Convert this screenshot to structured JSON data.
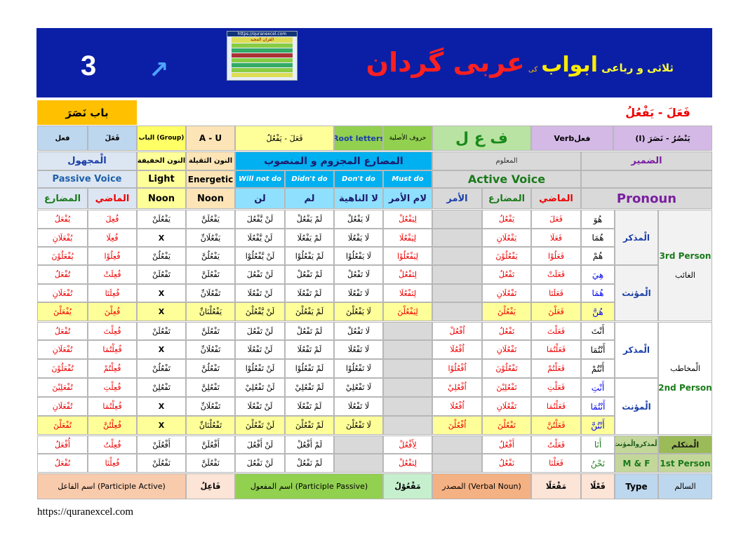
{
  "banner": {
    "page_number": "3",
    "arrow": "↗",
    "thumbnail_url": "https://quranexcel.com",
    "thumbnail_title": "القرآن المجيد",
    "title_part1": "ثلاثی و رباعی",
    "title_part2": "ابواب",
    "title_part3": "کی",
    "title_part4": "عربی گردان"
  },
  "header": {
    "bab": "باب نَصَرَ",
    "pattern": "فَعَلَ - يَفْعُلُ"
  },
  "info": {
    "type": "فعل",
    "kind": "فَعَلَ",
    "group": "(Group) الباب",
    "au": "A - U",
    "pattern": "فَعَلَ - يَفْعُلُ",
    "root_en": "Root letters",
    "root_ar": "حروف الأصلية",
    "root_letters": "ف ع ل",
    "verb": "Verbفعل",
    "verb_form": "يَنْصُرُ - نَصَرَ (I)"
  },
  "headers": {
    "majhool": "الْمجهول",
    "passive": "Passive Voice",
    "mudari_p": "المضارع",
    "madi_p": "الماضي",
    "noon_khafifa": "النون الخفيفة",
    "light": "Light",
    "noon1": "Noon",
    "noon_thaqila": "النون الثقيلة",
    "energetic": "Energetic",
    "noon2": "Noon",
    "mudari_title": "المضارع المجزوم و المنصوب",
    "will_not": "Will not do",
    "didnt": "Didn't do",
    "dont": "Don't do",
    "must": "Must do",
    "lan": "لن",
    "lam": "لم",
    "la_nahia": "لا الناهية",
    "lam_amr": "لام الأمر",
    "maloom": "المعلوم",
    "active": "Active Voice",
    "amr": "الأمر",
    "mudari_a": "المضارع",
    "madi_a": "الماضي",
    "dameer": "الضمير",
    "pronoun": "Pronoun"
  },
  "groups": {
    "mudhakkar1": "الْمذكر",
    "muannath1": "الْمؤنث",
    "third_en": "3rd Person",
    "ghaib": "الغائب",
    "mudhakkar2": "الْمذكر",
    "muannath2": "الْمؤنث",
    "mukhatab": "الْمخاطب",
    "second_en": "2nd Person",
    "mutakallim_group": "الْمذكروالْمؤنث",
    "mutakallim": "الْمتكلم",
    "mf": "M & F",
    "first_en": "1st Person"
  },
  "rows": [
    {
      "mudari_p": "يُفْعَلُ",
      "madi_p": "فُعِلَ",
      "light": "يَفْعُلَنْ",
      "heavy": "يَفْعُلَنَّ",
      "lan": "لَنْ يَّفْعُلَ",
      "lam": "لَمْ يَفْعُلْ",
      "la": "لَا يَفْعُلْ",
      "lamamr": "لِيَفْعُلْ",
      "amr": "",
      "mudari_a": "يَفْعُلُ",
      "madi_a": "فَعَلَ",
      "pronoun": "هُوَ"
    },
    {
      "mudari_p": "يُفْعَلَانِ",
      "madi_p": "فُعِلَا",
      "light": "X",
      "heavy": "يَفْعُلَانِّ",
      "lan": "لَنْ يَّفْعُلَا",
      "lam": "لَمْ يَفْعُلَا",
      "la": "لَا يَفْعُلَا",
      "lamamr": "لِيَفْعُلَا",
      "amr": "",
      "mudari_a": "يَفْعُلَانِ",
      "madi_a": "فَعَلَا",
      "pronoun": "هُمَا"
    },
    {
      "mudari_p": "يُفْعَلُوْنَ",
      "madi_p": "فُعِلُوْا",
      "light": "يَفْعُلُنْ",
      "heavy": "يَفْعُلُنَّ",
      "lan": "لَنْ يَّفْعُلُوْا",
      "lam": "لَمْ يَفْعُلُوْا",
      "la": "لَا يَفْعُلُوْا",
      "lamamr": "لِيَفْعُلُوْا",
      "amr": "",
      "mudari_a": "يَفْعُلُوْنَ",
      "madi_a": "فَعَلُوْا",
      "pronoun": "هُمْ"
    },
    {
      "mudari_p": "تُفْعَلُ",
      "madi_p": "فُعِلَتْ",
      "light": "تَفْعُلَنْ",
      "heavy": "تَفْعُلَنَّ",
      "lan": "لَنْ تَفْعُلَ",
      "lam": "لَمْ تَفْعُلْ",
      "la": "لَا تَفْعُلْ",
      "lamamr": "لِتَفْعُلْ",
      "amr": "",
      "mudari_a": "تَفْعُلُ",
      "madi_a": "فَعَلَتْ",
      "pronoun": "هِيَ"
    },
    {
      "mudari_p": "تُفْعَلَانِ",
      "madi_p": "فُعِلَتَا",
      "light": "X",
      "heavy": "تَفْعُلَانِّ",
      "lan": "لَنْ تَفْعُلَا",
      "lam": "لَمْ تَفْعُلَا",
      "la": "لَا تَفْعُلَا",
      "lamamr": "لِتَفْعُلَا",
      "amr": "",
      "mudari_a": "تَفْعُلَانِ",
      "madi_a": "فَعَلَتَا",
      "pronoun": "هُمَا"
    },
    {
      "mudari_p": "يُفْعَلْنَ",
      "madi_p": "فُعِلْنَ",
      "light": "X",
      "heavy": "يَفْعُلْنَانِّ",
      "lan": "لَنْ يَّفْعُلْنَ",
      "lam": "لَمْ يَفْعُلْنَ",
      "la": "لَا يَفْعُلْنَ",
      "lamamr": "لِيَفْعُلْنَ",
      "amr": "",
      "mudari_a": "يَفْعُلْنَ",
      "madi_a": "فَعَلْنَ",
      "pronoun": "هُنَّ"
    },
    {
      "mudari_p": "تُفْعَلُ",
      "madi_p": "فُعِلْتَ",
      "light": "تَفْعُلَنْ",
      "heavy": "تَفْعُلَنَّ",
      "lan": "لَنْ تَفْعُلَ",
      "lam": "لَمْ تَفْعُلْ",
      "la": "لَا تَفْعُلْ",
      "lamamr": "",
      "amr": "اُفْعُلْ",
      "mudari_a": "تَفْعُلُ",
      "madi_a": "فَعَلْتَ",
      "pronoun": "أَنْتَ"
    },
    {
      "mudari_p": "تُفْعَلَانِ",
      "madi_p": "فُعِلْتُمَا",
      "light": "X",
      "heavy": "تَفْعُلَانِّ",
      "lan": "لَنْ تَفْعُلَا",
      "lam": "لَمْ تَفْعُلَا",
      "la": "لَا تَفْعُلَا",
      "lamamr": "",
      "amr": "اُفْعُلَا",
      "mudari_a": "تَفْعُلَانِ",
      "madi_a": "فَعَلْتُمَا",
      "pronoun": "أَنْتُمَا"
    },
    {
      "mudari_p": "تُفْعَلُوْنَ",
      "madi_p": "فُعِلْتُمْ",
      "light": "تَفْعُلُنْ",
      "heavy": "تَفْعُلُنَّ",
      "lan": "لَنْ تَفْعُلُوْا",
      "lam": "لَمْ تَفْعُلُوْا",
      "la": "لَا تَفْعُلُوْا",
      "lamamr": "",
      "amr": "اُفْعُلُوْا",
      "mudari_a": "تَفْعُلُوْنَ",
      "madi_a": "فَعَلْتُمْ",
      "pronoun": "أَنْتُمْ"
    },
    {
      "mudari_p": "تُفْعَلِيْنَ",
      "madi_p": "فُعِلْتِ",
      "light": "تَفْعُلِنْ",
      "heavy": "تَفْعُلِنَّ",
      "lan": "لَنْ تَفْعُلِيْ",
      "lam": "لَمْ تَفْعُلِيْ",
      "la": "لَا تَفْعُلِيْ",
      "lamamr": "",
      "amr": "اُفْعُلِيْ",
      "mudari_a": "تَفْعُلِيْنَ",
      "madi_a": "فَعَلْتِ",
      "pronoun": "أَنْتِ"
    },
    {
      "mudari_p": "تُفْعَلَانِ",
      "madi_p": "فُعِلْتُمَا",
      "light": "X",
      "heavy": "تَفْعُلَانِّ",
      "lan": "لَنْ تَفْعُلَا",
      "lam": "لَمْ تَفْعُلَا",
      "la": "لَا تَفْعُلَا",
      "lamamr": "",
      "amr": "اُفْعُلَا",
      "mudari_a": "تَفْعُلَانِ",
      "madi_a": "فَعَلْتُمَا",
      "pronoun": "أَنْتُمَا"
    },
    {
      "mudari_p": "تُفْعَلْنَ",
      "madi_p": "فُعِلْتُنَّ",
      "light": "X",
      "heavy": "تَفْعُلْنَانِّ",
      "lan": "لَنْ تَفْعُلْنَ",
      "lam": "لَمْ تَفْعُلْنَ",
      "la": "لَا تَفْعُلْنَ",
      "lamamr": "",
      "amr": "اُفْعُلْنَ",
      "mudari_a": "تَفْعُلْنَ",
      "madi_a": "فَعَلْتُنَّ",
      "pronoun": "أَنْتُنَّ"
    },
    {
      "mudari_p": "أُفْعَلُ",
      "madi_p": "فُعِلْتُ",
      "light": "أَفْعُلَنْ",
      "heavy": "أَفْعُلَنَّ",
      "lan": "لَنْ أَفْعُلَ",
      "lam": "لَمْ أَفْعُلْ",
      "la": "",
      "lamamr": "لِأَفْعُلْ",
      "amr": "",
      "mudari_a": "أَفْعُلُ",
      "madi_a": "فَعَلْتُ",
      "pronoun": "أَنَا"
    },
    {
      "mudari_p": "نُفْعَلُ",
      "madi_p": "فُعِلْنَا",
      "light": "نَفْعُلَنْ",
      "heavy": "نَفْعُلَنَّ",
      "lan": "لَنْ نَفْعُلَ",
      "lam": "لَمْ نَفْعُلْ",
      "la": "",
      "lamamr": "لِنَفْعُلْ",
      "amr": "",
      "mudari_a": "نَفْعُلُ",
      "madi_a": "فَعَلْنَا",
      "pronoun": "نَحْنُ"
    }
  ],
  "bottom": {
    "participle_active": "(Participle Active)  اسم الفاعل",
    "faail": "فَاعِلٌ",
    "participle_passive": "(Participle Passive)  اسم المفعول",
    "mafool": "مَفْعُوْلٌ",
    "verbal_noun": "(Verbal Noun)  المصدر",
    "masdar": "مَفْعَلًا",
    "faalan": "فَعْلًا",
    "type_label": "Type",
    "saalim": "السالم"
  },
  "footer": {
    "url": "https://quranexcel.com"
  }
}
